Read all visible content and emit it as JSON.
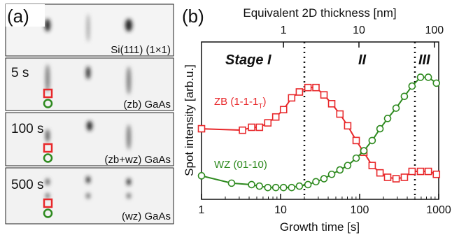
{
  "panel_a": {
    "label": "(a)",
    "frames": [
      {
        "caption": "Si(111) (1×1)"
      },
      {
        "time": "5 s",
        "caption": "(zb) GaAs"
      },
      {
        "time": "100 s",
        "caption": "(zb+wz) GaAs"
      },
      {
        "time": "500 s",
        "caption": "(wz) GaAs"
      }
    ]
  },
  "chart_data": {
    "type": "line",
    "panel_label": "(b)",
    "x_label": "Growth time [s]",
    "y_label": "Spot intensity [arb.u.]",
    "x2_label": "Equivalent 2D thickness [nm]",
    "xscale": "log",
    "xlim": [
      1,
      1000
    ],
    "xticks": [
      1,
      10,
      100,
      1000
    ],
    "x2lim": [
      0.082,
      114
    ],
    "x2ticks": [
      1,
      10,
      100
    ],
    "ylim": [
      0,
      1.07
    ],
    "stage_labels": [
      "Stage I",
      "II",
      "III"
    ],
    "stage_boundaries": [
      20,
      500
    ],
    "series": [
      {
        "name": "ZB (1-1-1",
        "name_subscript": "T",
        "name_suffix": ")",
        "color": "#e8282b",
        "marker": "square",
        "x": [
          1,
          3.3,
          4.3,
          5.4,
          6.9,
          8.7,
          10.9,
          13.8,
          17.3,
          22.2,
          28,
          35.4,
          44.3,
          56.3,
          70.6,
          90.4,
          113,
          144,
          181,
          226,
          289,
          368,
          460,
          589,
          739,
          936
        ],
        "values": [
          0.48,
          0.47,
          0.49,
          0.49,
          0.52,
          0.56,
          0.61,
          0.69,
          0.73,
          0.76,
          0.76,
          0.71,
          0.65,
          0.58,
          0.5,
          0.4,
          0.32,
          0.23,
          0.18,
          0.15,
          0.14,
          0.15,
          0.19,
          0.19,
          0.19,
          0.17
        ]
      },
      {
        "name": "WZ (01-10)",
        "color": "#2e8a1f",
        "marker": "circle",
        "x": [
          1,
          2.4,
          4.3,
          5.4,
          6.9,
          8.7,
          10.9,
          13.8,
          17.3,
          22.2,
          28,
          35.4,
          44.3,
          56.3,
          70.6,
          90.4,
          113,
          144,
          181,
          226,
          289,
          368,
          460,
          589,
          739,
          936
        ],
        "values": [
          0.16,
          0.11,
          0.1,
          0.09,
          0.08,
          0.08,
          0.08,
          0.08,
          0.09,
          0.1,
          0.12,
          0.14,
          0.17,
          0.2,
          0.23,
          0.28,
          0.33,
          0.4,
          0.48,
          0.55,
          0.62,
          0.7,
          0.77,
          0.83,
          0.83,
          0.79
        ]
      }
    ]
  }
}
